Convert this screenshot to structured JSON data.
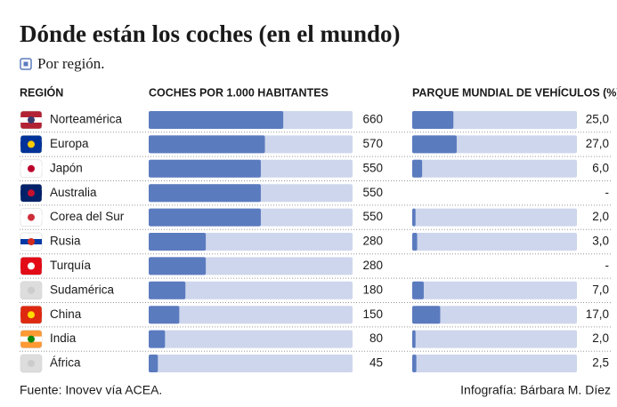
{
  "chart_data": {
    "type": "table-bar",
    "title": "Dónde están los coches (en el mundo)",
    "subtitle": "Por región.",
    "headers": [
      "REGIÓN",
      "COCHES POR 1.000 HABITANTES",
      "PARQUE MUNDIAL DE VEHÍCULOS (%)"
    ],
    "categories": [
      "Norteamérica",
      "Europa",
      "Japón",
      "Australia",
      "Corea del Sur",
      "Rusia",
      "Turquía",
      "Sudamérica",
      "China",
      "India",
      "África"
    ],
    "series": [
      {
        "name": "COCHES POR 1.000 HABITANTES",
        "color": "#5b7bbf",
        "values": [
          660,
          570,
          550,
          550,
          550,
          280,
          280,
          180,
          150,
          80,
          45
        ],
        "xlim": [
          0,
          1000
        ]
      },
      {
        "name": "PARQUE MUNDIAL DE VEHÍCULOS (%)",
        "color": "#5b7bbf",
        "values": [
          25,
          27,
          6,
          null,
          2,
          3,
          null,
          7,
          17,
          2,
          2.5
        ],
        "value_labels": [
          "25,0",
          "27,0",
          "6,0",
          "-",
          "2,0",
          "3,0",
          "-",
          "7,0",
          "17,0",
          "2,0",
          "2,5"
        ],
        "xlim": [
          0,
          100
        ]
      }
    ],
    "source": "Fuente: Inovev vía ACEA.",
    "credit": "Infografía: Bárbara M. Díez"
  }
}
